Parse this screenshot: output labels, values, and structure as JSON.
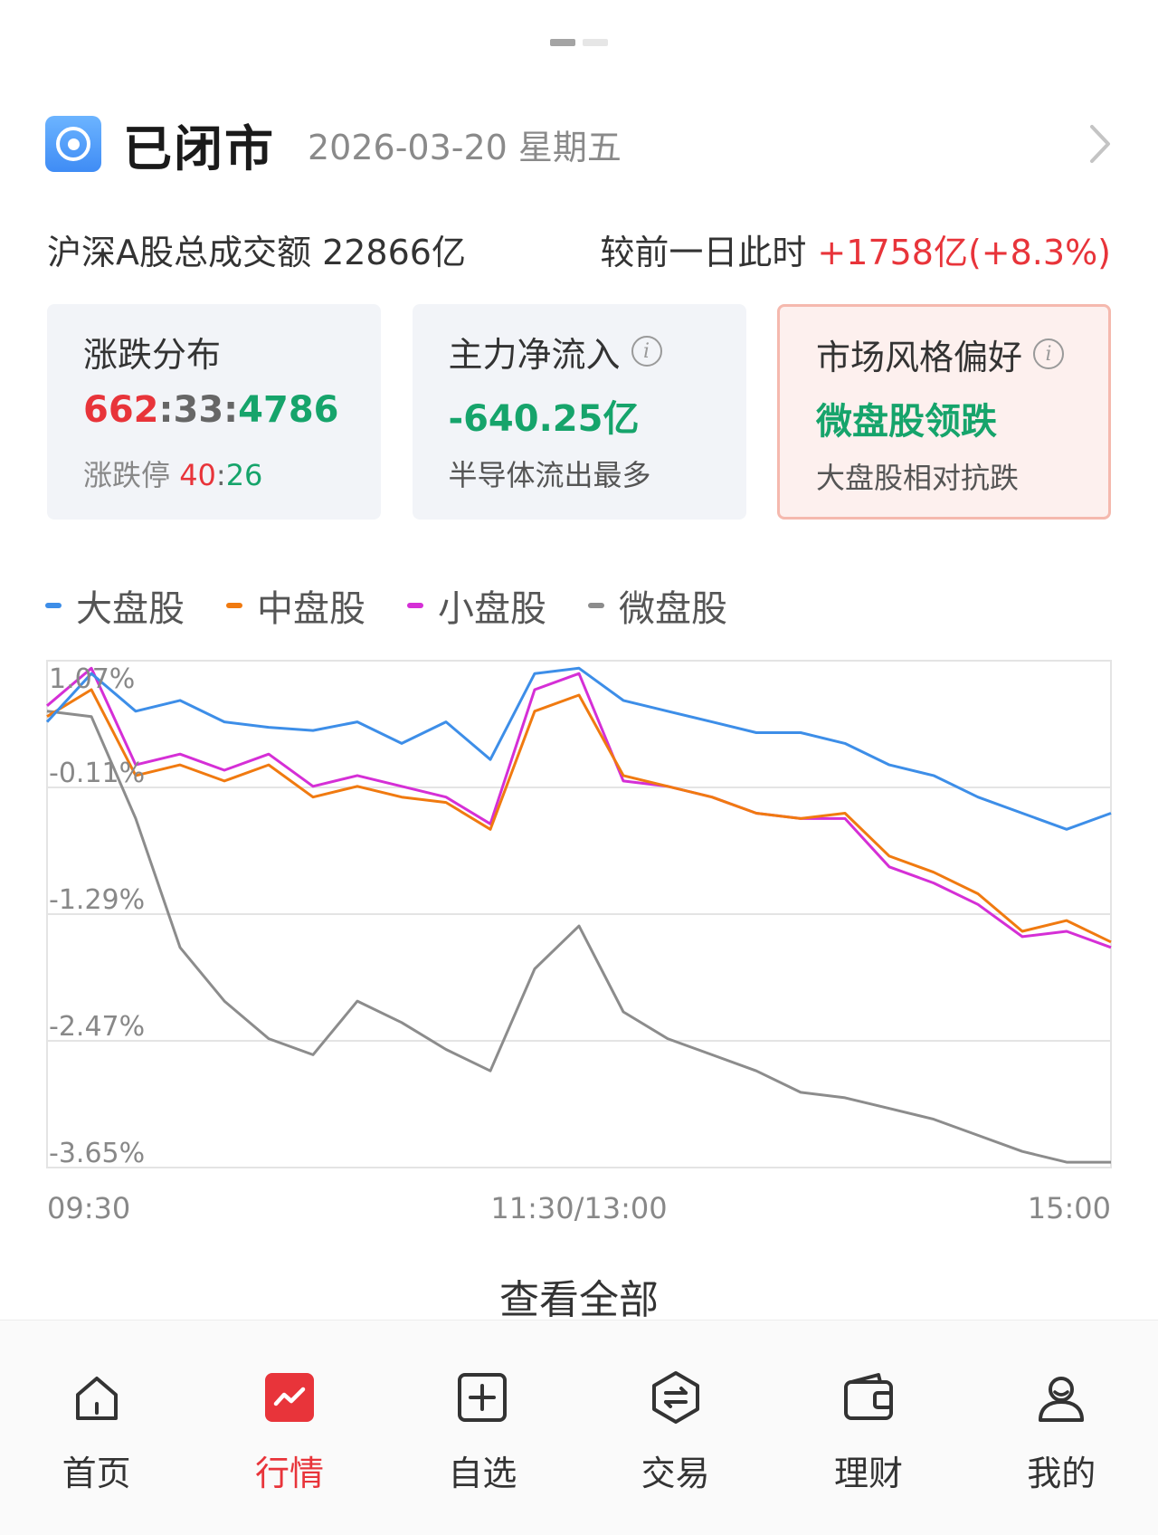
{
  "status": {
    "title": "已闭市",
    "date": "2026-03-20 星期五"
  },
  "volume": {
    "label": "沪深A股总成交额 22866亿",
    "compare_label": "较前一日此时",
    "compare_value": "+1758亿(+8.3%)"
  },
  "cards": {
    "distribution": {
      "title": "涨跌分布",
      "up": "662",
      "flat": "33",
      "down": "4786",
      "sub_label": "涨跌停",
      "limit_up": "40",
      "limit_down": "26"
    },
    "net_inflow": {
      "title": "主力净流入",
      "value": "-640.25亿",
      "sub": "半导体流出最多"
    },
    "style": {
      "title": "市场风格偏好",
      "value": "微盘股领跌",
      "sub": "大盘股相对抗跌"
    }
  },
  "colors": {
    "up": "#e8343a",
    "down": "#16a46b",
    "accent": "#e8343a"
  },
  "chart_data": {
    "type": "line",
    "y_unit": "%",
    "ylim": [
      -3.65,
      1.07
    ],
    "yticks": [
      "1.07%",
      "-0.11%",
      "-1.29%",
      "-2.47%",
      "-3.65%"
    ],
    "xticks": [
      "09:30",
      "11:30/13:00",
      "15:00"
    ],
    "x": [
      0,
      10,
      20,
      30,
      40,
      50,
      60,
      70,
      80,
      90,
      100,
      110,
      120,
      130,
      140,
      150,
      160,
      170,
      180,
      190,
      200,
      210,
      220,
      230,
      240
    ],
    "grid": true,
    "legend_position": "top-left",
    "series": [
      {
        "name": "大盘股",
        "color": "#3d8ee8",
        "values": [
          0.5,
          0.95,
          0.6,
          0.7,
          0.5,
          0.45,
          0.42,
          0.5,
          0.3,
          0.5,
          0.15,
          0.95,
          1.0,
          0.7,
          0.6,
          0.5,
          0.4,
          0.4,
          0.3,
          0.1,
          0.0,
          -0.2,
          -0.35,
          -0.5,
          -0.35
        ]
      },
      {
        "name": "中盘股",
        "color": "#f07a10",
        "values": [
          0.55,
          0.8,
          0.0,
          0.1,
          -0.05,
          0.1,
          -0.2,
          -0.1,
          -0.2,
          -0.25,
          -0.5,
          0.6,
          0.75,
          0.0,
          -0.1,
          -0.2,
          -0.35,
          -0.4,
          -0.35,
          -0.75,
          -0.9,
          -1.1,
          -1.45,
          -1.35,
          -1.55
        ]
      },
      {
        "name": "小盘股",
        "color": "#d52fd6",
        "values": [
          0.65,
          1.0,
          0.1,
          0.2,
          0.05,
          0.2,
          -0.1,
          0.0,
          -0.1,
          -0.2,
          -0.45,
          0.8,
          0.95,
          -0.05,
          -0.1,
          -0.2,
          -0.35,
          -0.4,
          -0.4,
          -0.85,
          -1.0,
          -1.2,
          -1.5,
          -1.45,
          -1.6
        ]
      },
      {
        "name": "微盘股",
        "color": "#8c8c8c",
        "values": [
          0.6,
          0.55,
          -0.4,
          -1.6,
          -2.1,
          -2.45,
          -2.6,
          -2.1,
          -2.3,
          -2.55,
          -2.75,
          -1.8,
          -1.4,
          -2.2,
          -2.45,
          -2.6,
          -2.75,
          -2.95,
          -3.0,
          -3.1,
          -3.2,
          -3.35,
          -3.5,
          -3.6,
          -3.6
        ]
      }
    ]
  },
  "view_all": "查看全部",
  "tabs": [
    {
      "label": "首页",
      "icon": "home-icon"
    },
    {
      "label": "行情",
      "icon": "market-icon"
    },
    {
      "label": "自选",
      "icon": "add-watchlist-icon"
    },
    {
      "label": "交易",
      "icon": "trade-icon"
    },
    {
      "label": "理财",
      "icon": "wallet-icon"
    },
    {
      "label": "我的",
      "icon": "profile-icon"
    }
  ]
}
